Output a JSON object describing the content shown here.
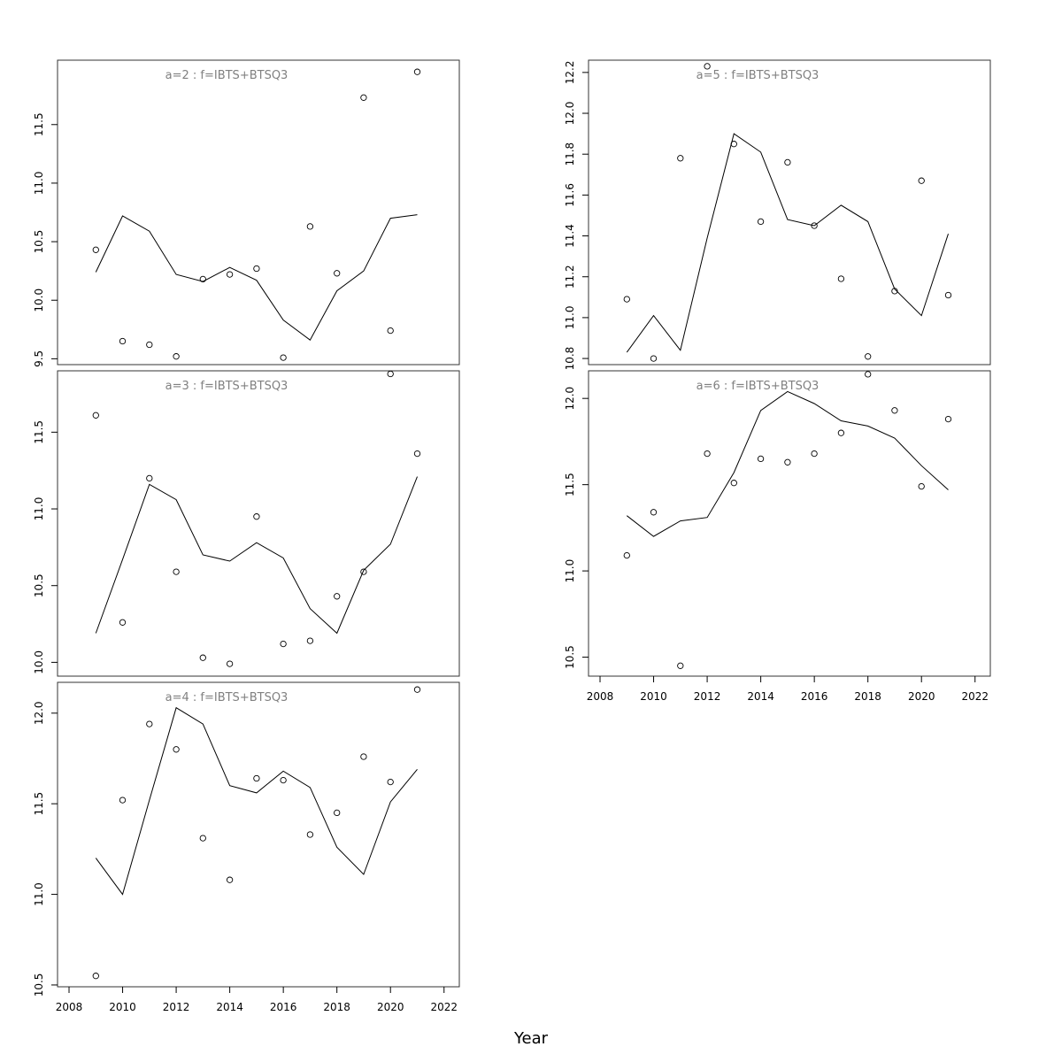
{
  "xlabel": "Year",
  "chart_data": [
    {
      "type": "line",
      "title": "a=2 : f=IBTS+BTSQ3",
      "x": [
        2009,
        2010,
        2011,
        2012,
        2013,
        2014,
        2015,
        2016,
        2017,
        2018,
        2019,
        2020,
        2021
      ],
      "series": [
        {
          "kind": "line",
          "values": [
            10.24,
            10.72,
            10.59,
            10.22,
            10.16,
            10.28,
            10.17,
            9.83,
            9.66,
            10.08,
            10.25,
            10.7,
            10.73
          ]
        },
        {
          "kind": "points",
          "values": [
            10.43,
            9.65,
            9.62,
            9.52,
            10.18,
            10.22,
            10.27,
            9.51,
            10.63,
            10.23,
            11.73,
            9.74,
            11.95
          ]
        }
      ],
      "ylim": [
        9.45,
        12.05
      ],
      "yticks": [
        "9.5",
        "10.0",
        "10.5",
        "11.0",
        "11.5"
      ],
      "xticks": []
    },
    {
      "type": "line",
      "title": "a=5 : f=IBTS+BTSQ3",
      "x": [
        2009,
        2010,
        2011,
        2012,
        2013,
        2014,
        2015,
        2016,
        2017,
        2018,
        2019,
        2020,
        2021
      ],
      "series": [
        {
          "kind": "line",
          "values": [
            10.83,
            11.01,
            10.84,
            11.39,
            11.9,
            11.81,
            11.48,
            11.45,
            11.55,
            11.47,
            11.14,
            11.01,
            11.41
          ]
        },
        {
          "kind": "points",
          "values": [
            11.09,
            10.8,
            11.78,
            12.23,
            11.85,
            11.47,
            11.76,
            11.45,
            11.19,
            10.81,
            11.13,
            11.67,
            11.11
          ]
        }
      ],
      "ylim": [
        10.77,
        12.26
      ],
      "yticks": [
        "10.8",
        "11.0",
        "11.2",
        "11.4",
        "11.6",
        "11.8",
        "12.0",
        "12.2"
      ],
      "xticks": []
    },
    {
      "type": "line",
      "title": "a=3 : f=IBTS+BTSQ3",
      "x": [
        2009,
        2010,
        2011,
        2012,
        2013,
        2014,
        2015,
        2016,
        2017,
        2018,
        2019,
        2020,
        2021
      ],
      "series": [
        {
          "kind": "line",
          "values": [
            10.19,
            10.67,
            11.16,
            11.06,
            10.7,
            10.66,
            10.78,
            10.68,
            10.35,
            10.19,
            10.6,
            10.77,
            11.21
          ]
        },
        {
          "kind": "points",
          "values": [
            11.61,
            10.26,
            11.2,
            10.59,
            10.03,
            9.99,
            10.95,
            10.12,
            10.14,
            10.43,
            10.59,
            11.88,
            11.36
          ]
        }
      ],
      "ylim": [
        9.91,
        11.9
      ],
      "yticks": [
        "10.0",
        "10.5",
        "11.0",
        "11.5"
      ],
      "xticks": []
    },
    {
      "type": "line",
      "title": "a=6 : f=IBTS+BTSQ3",
      "x": [
        2009,
        2010,
        2011,
        2012,
        2013,
        2014,
        2015,
        2016,
        2017,
        2018,
        2019,
        2020,
        2021
      ],
      "series": [
        {
          "kind": "line",
          "values": [
            11.32,
            11.2,
            11.29,
            11.31,
            11.57,
            11.93,
            12.04,
            11.97,
            11.87,
            11.84,
            11.77,
            11.61,
            11.47
          ]
        },
        {
          "kind": "points",
          "values": [
            11.09,
            11.34,
            10.45,
            11.68,
            11.51,
            11.65,
            11.63,
            11.68,
            11.8,
            12.14,
            11.93,
            11.49,
            11.88
          ]
        }
      ],
      "ylim": [
        10.39,
        12.16
      ],
      "yticks": [
        "10.5",
        "11.0",
        "11.5",
        "12.0"
      ],
      "xticks": [
        "2008",
        "2010",
        "2012",
        "2014",
        "2016",
        "2018",
        "2020",
        "2022"
      ]
    },
    {
      "type": "line",
      "title": "a=4 : f=IBTS+BTSQ3",
      "x": [
        2009,
        2010,
        2011,
        2012,
        2013,
        2014,
        2015,
        2016,
        2017,
        2018,
        2019,
        2020,
        2021
      ],
      "series": [
        {
          "kind": "line",
          "values": [
            11.2,
            11.0,
            11.52,
            12.03,
            11.94,
            11.6,
            11.56,
            11.68,
            11.59,
            11.26,
            11.11,
            11.51,
            11.69
          ]
        },
        {
          "kind": "points",
          "values": [
            10.55,
            11.52,
            11.94,
            11.8,
            11.31,
            11.08,
            11.64,
            11.63,
            11.33,
            11.45,
            11.76,
            11.62,
            12.13
          ]
        }
      ],
      "ylim": [
        10.49,
        12.17
      ],
      "yticks": [
        "10.5",
        "11.0",
        "11.5",
        "12.0"
      ],
      "xticks": [
        "2008",
        "2010",
        "2012",
        "2014",
        "2016",
        "2018",
        "2020",
        "2022"
      ]
    }
  ]
}
